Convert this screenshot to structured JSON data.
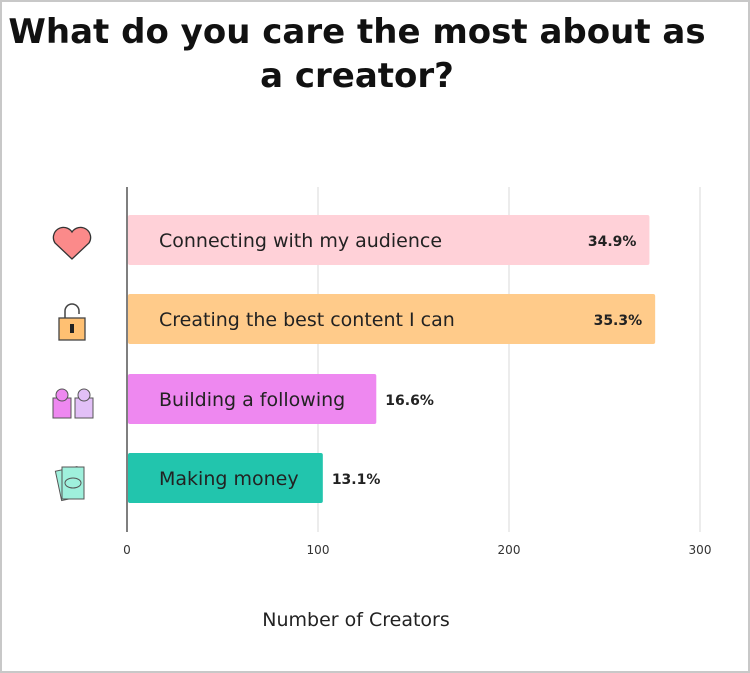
{
  "chart_data": {
    "type": "bar",
    "orientation": "horizontal",
    "title": "What do you care the most about as a creator?",
    "xlabel": "Number of Creators",
    "ylabel": "",
    "xlim": [
      0,
      300
    ],
    "xticks": [
      "0",
      "100",
      "200",
      "300"
    ],
    "grid": true,
    "categories": [
      "Connecting with my audience",
      "Creating the best content I can",
      "Building a following",
      "Making money"
    ],
    "values": [
      273,
      276,
      130,
      102
    ],
    "data_labels": [
      "34.9%",
      "35.3%",
      "16.6%",
      "13.1%"
    ],
    "colors": [
      "#ffd1d8",
      "#ffcb8a",
      "#ee88f0",
      "#22c5ad"
    ],
    "icons": [
      "heart-icon",
      "unlocked-padlock-icon",
      "people-icon",
      "money-icon"
    ]
  }
}
